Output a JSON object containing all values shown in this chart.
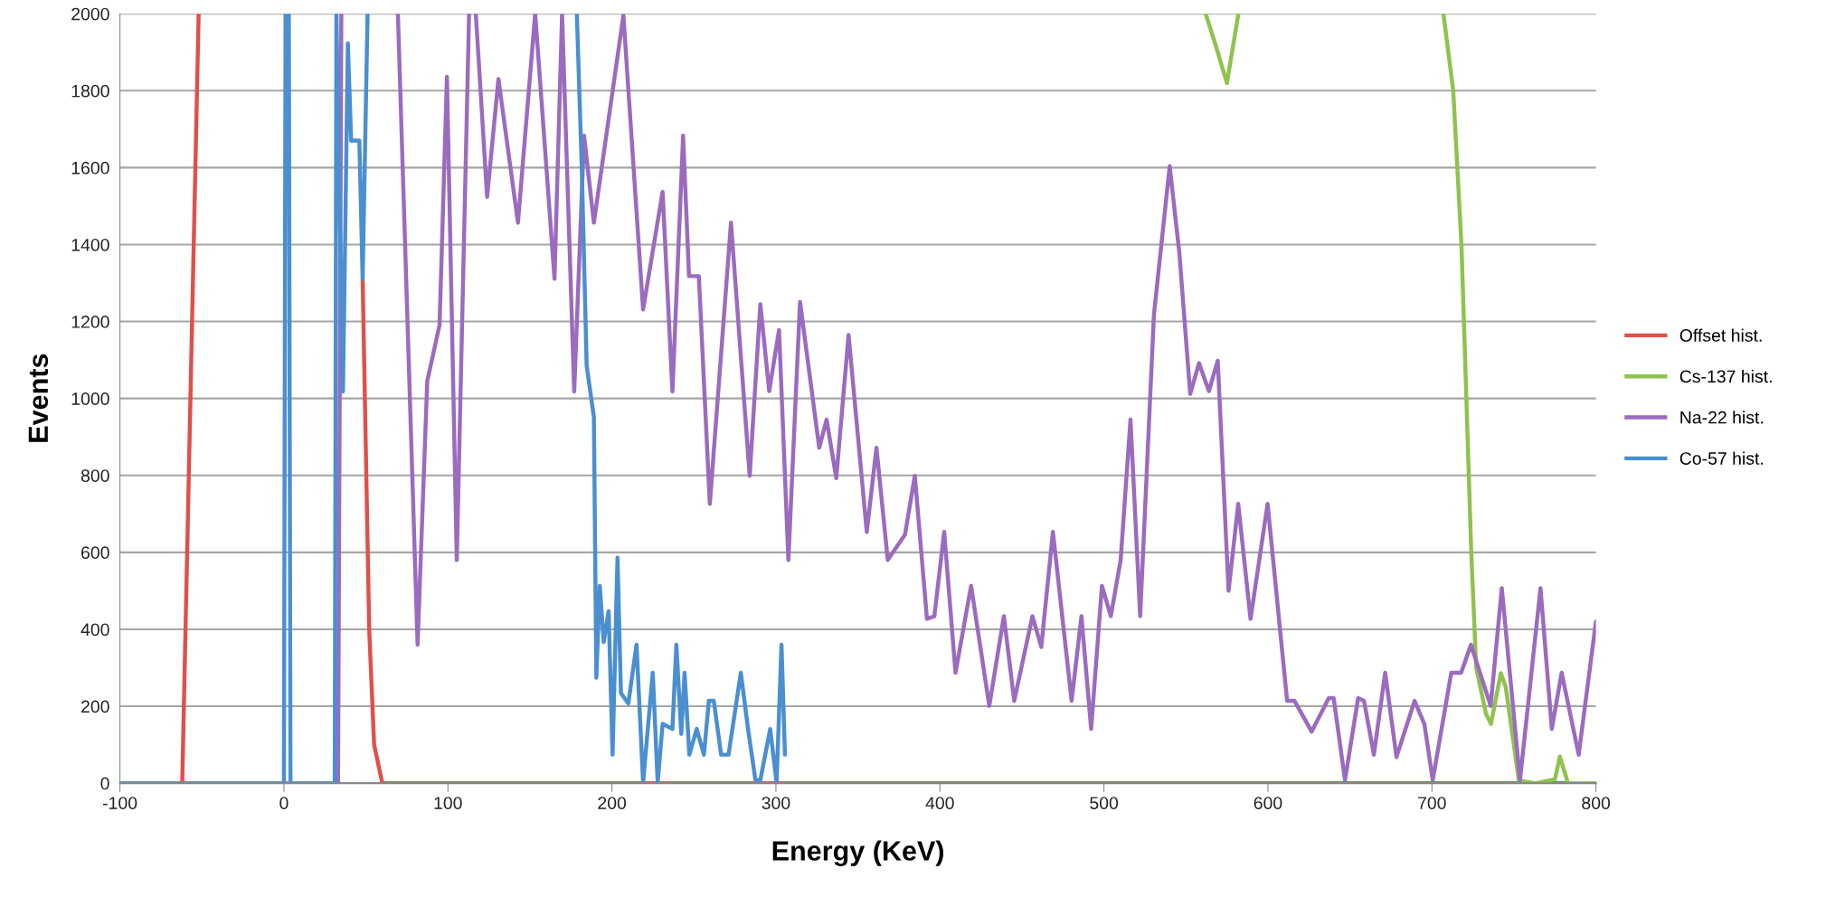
{
  "chart_data": {
    "type": "line",
    "xlabel": "Energy (KeV)",
    "ylabel": "Events",
    "xlim": [
      -100,
      800
    ],
    "ylim": [
      0,
      2000
    ],
    "xticks": [
      -100,
      0,
      100,
      200,
      300,
      400,
      500,
      600,
      700,
      800
    ],
    "yticks": [
      0,
      200,
      400,
      600,
      800,
      1000,
      1200,
      1400,
      1600,
      1800,
      2000
    ],
    "grid": "y",
    "legend": "right",
    "marker": "none",
    "line_style": "solid",
    "series": [
      {
        "name": "Offset hist.",
        "color": "#e0504a",
        "x": [
          -100,
          -62,
          -52,
          45,
          48,
          52,
          55,
          60,
          800
        ],
        "values": [
          0,
          0,
          2000,
          null,
          1310,
          400,
          100,
          0,
          0
        ]
      },
      {
        "name": "Cs-137 hist.",
        "color": "#8fc24e",
        "x": [
          562,
          568,
          575,
          582,
          600,
          707,
          713,
          718,
          721,
          724,
          727,
          733,
          736,
          742,
          745,
          753,
          763,
          775,
          778,
          783,
          800
        ],
        "values": [
          2000,
          1920,
          1820,
          2000,
          null,
          2000,
          1800,
          1400,
          1000,
          600,
          300,
          180,
          154,
          286,
          250,
          7,
          0,
          10,
          69,
          0,
          0
        ]
      },
      {
        "name": "Na-22 hist.",
        "color": "#9b6bbf",
        "x": [
          0,
          33,
          35,
          50,
          69.5,
          81.5,
          87.4,
          94.9,
          99.4,
          105.4,
          112.9,
          115,
          117,
          123.9,
          130.8,
          142.7,
          153.2,
          165,
          169.6,
          177,
          183,
          189,
          207,
          219,
          230.9,
          236.9,
          243.4,
          247,
          253,
          259.7,
          272.6,
          284,
          290.5,
          295.9,
          301.9,
          307.6,
          314.7,
          326.4,
          330.9,
          336.8,
          344.3,
          355.4,
          361.3,
          368.2,
          378.7,
          384.7,
          392.1,
          396.6,
          402.6,
          409.5,
          419,
          430.1,
          439,
          445.3,
          456.4,
          461.8,
          468.9,
          480.3,
          486.3,
          492.2,
          498.8,
          504.2,
          510.2,
          516.2,
          522.1,
          530.5,
          540.1,
          546,
          552.6,
          558,
          564,
          569.4,
          576,
          581.9,
          589.4,
          599.8,
          611.7,
          616.2,
          626.7,
          637.1,
          640.1,
          647,
          655,
          658.6,
          664.6,
          671.5,
          678.4,
          689.4,
          695.4,
          700.5,
          711.8,
          717.8,
          723.8,
          735.8,
          742.6,
          753.7,
          766.2,
          773.1,
          779.1,
          789.5,
          800
        ],
        "values": [
          0,
          0,
          2000,
          null,
          2000,
          360,
          1045,
          1191,
          1836,
          580,
          2000,
          null,
          2000,
          1524,
          1830,
          1457,
          2000,
          1311,
          2000,
          1018,
          1683,
          1457,
          1996,
          1231,
          1537,
          1018,
          1683,
          1318,
          1318,
          726,
          1457,
          799,
          1245,
          1019,
          1178,
          580,
          1251,
          872,
          945,
          793,
          1165,
          653,
          872,
          580,
          646,
          799,
          427,
          434,
          653,
          287,
          513,
          201,
          434,
          214,
          434,
          354,
          653,
          214,
          434,
          141,
          513,
          434,
          580,
          945,
          434,
          1218,
          1604,
          1378,
          1012,
          1092,
          1019,
          1098,
          500,
          726,
          427,
          726,
          214,
          214,
          134,
          221,
          221,
          8,
          221,
          214,
          74,
          287,
          68,
          214,
          154,
          8,
          287,
          287,
          360,
          201,
          507,
          8,
          507,
          141,
          287,
          74,
          420
        ]
      },
      {
        "name": "Co-57 hist.",
        "color": "#4a8fd0",
        "x": [
          -100,
          0,
          1,
          2,
          3,
          4,
          31,
          32,
          36,
          39,
          41,
          46,
          48,
          51,
          100,
          178.6,
          181.6,
          184.6,
          189,
          190.5,
          192.6,
          195,
          198,
          200.4,
          203.4,
          205.5,
          210,
          215,
          219,
          224.9,
          227.9,
          230.9,
          236.9,
          239.3,
          242.3,
          244.3,
          247.2,
          251.7,
          256.1,
          259.1,
          262.1,
          266.6,
          271.1,
          278.6,
          283,
          287.5,
          290.5,
          296.5,
          300.4,
          303.4,
          305.5
        ],
        "values": [
          0,
          0,
          2000,
          null,
          2000,
          0,
          0,
          2000,
          1018,
          1923,
          1670,
          1670,
          1311,
          2000,
          null,
          2000,
          1604,
          1085,
          952,
          274,
          513,
          367,
          447,
          74,
          586,
          234,
          207,
          360,
          2,
          287,
          2,
          154,
          141,
          360,
          128,
          287,
          74,
          141,
          74,
          214,
          214,
          74,
          74,
          287,
          141,
          8,
          8,
          141,
          2,
          360,
          74
        ]
      }
    ]
  }
}
